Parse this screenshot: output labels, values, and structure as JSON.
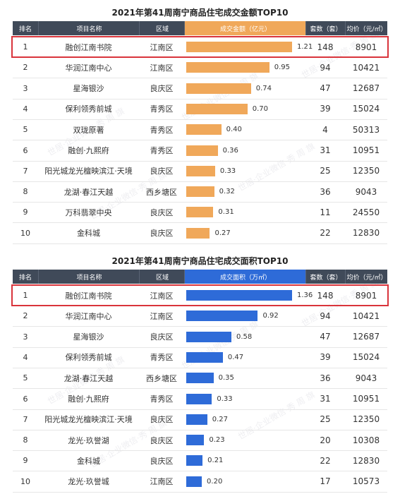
{
  "headers": {
    "rank": "排名",
    "name": "项目名称",
    "district": "区域",
    "count": "套数（套）",
    "avg": "均价（元/㎡）"
  },
  "watermark": "世居·企业微信·秀 周 旗",
  "chart_data": [
    {
      "type": "bar",
      "title": "2021年第41周南宁商品住宅成交金额TOP10",
      "metric_header": "成交金额（亿元）",
      "bar_color": "#f0a85a",
      "xlim": [
        0,
        1.21
      ],
      "highlighted_rank": 1,
      "rows": [
        {
          "rank": "1",
          "name": "融创江南书院",
          "district": "江南区",
          "value": 1.21,
          "value_label": "1.21",
          "count": "148",
          "avg": "8901"
        },
        {
          "rank": "2",
          "name": "华润江南中心",
          "district": "江南区",
          "value": 0.95,
          "value_label": "0.95",
          "count": "94",
          "avg": "10421"
        },
        {
          "rank": "3",
          "name": "星海银沙",
          "district": "良庆区",
          "value": 0.74,
          "value_label": "0.74",
          "count": "47",
          "avg": "12687"
        },
        {
          "rank": "4",
          "name": "保利领秀前城",
          "district": "青秀区",
          "value": 0.7,
          "value_label": "0.70",
          "count": "39",
          "avg": "15024"
        },
        {
          "rank": "5",
          "name": "双珑原著",
          "district": "青秀区",
          "value": 0.4,
          "value_label": "0.40",
          "count": "4",
          "avg": "50313"
        },
        {
          "rank": "6",
          "name": "融创·九熙府",
          "district": "青秀区",
          "value": 0.36,
          "value_label": "0.36",
          "count": "31",
          "avg": "10951"
        },
        {
          "rank": "7",
          "name": "阳光城龙光檀映滨江·天境",
          "district": "良庆区",
          "value": 0.33,
          "value_label": "0.33",
          "count": "25",
          "avg": "12350"
        },
        {
          "rank": "8",
          "name": "龙湖·春江天越",
          "district": "西乡塘区",
          "value": 0.32,
          "value_label": "0.32",
          "count": "36",
          "avg": "9043"
        },
        {
          "rank": "9",
          "name": "万科翡翠中央",
          "district": "良庆区",
          "value": 0.31,
          "value_label": "0.31",
          "count": "11",
          "avg": "24550"
        },
        {
          "rank": "10",
          "name": "金科城",
          "district": "良庆区",
          "value": 0.27,
          "value_label": "0.27",
          "count": "22",
          "avg": "12830"
        }
      ]
    },
    {
      "type": "bar",
      "title": "2021年第41周南宁商品住宅成交面积TOP10",
      "metric_header": "成交面积（万㎡）",
      "bar_color": "#2e6bd8",
      "xlim": [
        0,
        1.36
      ],
      "highlighted_rank": 1,
      "rows": [
        {
          "rank": "1",
          "name": "融创江南书院",
          "district": "江南区",
          "value": 1.36,
          "value_label": "1.36",
          "count": "148",
          "avg": "8901"
        },
        {
          "rank": "2",
          "name": "华润江南中心",
          "district": "江南区",
          "value": 0.92,
          "value_label": "0.92",
          "count": "94",
          "avg": "10421"
        },
        {
          "rank": "3",
          "name": "星海银沙",
          "district": "良庆区",
          "value": 0.58,
          "value_label": "0.58",
          "count": "47",
          "avg": "12687"
        },
        {
          "rank": "4",
          "name": "保利领秀前城",
          "district": "青秀区",
          "value": 0.47,
          "value_label": "0.47",
          "count": "39",
          "avg": "15024"
        },
        {
          "rank": "5",
          "name": "龙湖·春江天越",
          "district": "西乡塘区",
          "value": 0.35,
          "value_label": "0.35",
          "count": "36",
          "avg": "9043"
        },
        {
          "rank": "6",
          "name": "融创·九熙府",
          "district": "青秀区",
          "value": 0.33,
          "value_label": "0.33",
          "count": "31",
          "avg": "10951"
        },
        {
          "rank": "7",
          "name": "阳光城龙光檀映滨江·天境",
          "district": "良庆区",
          "value": 0.27,
          "value_label": "0.27",
          "count": "25",
          "avg": "12350"
        },
        {
          "rank": "8",
          "name": "龙光·玖誉湖",
          "district": "良庆区",
          "value": 0.23,
          "value_label": "0.23",
          "count": "20",
          "avg": "10308"
        },
        {
          "rank": "9",
          "name": "金科城",
          "district": "良庆区",
          "value": 0.21,
          "value_label": "0.21",
          "count": "22",
          "avg": "12830"
        },
        {
          "rank": "10",
          "name": "龙光·玖誉城",
          "district": "江南区",
          "value": 0.2,
          "value_label": "0.20",
          "count": "17",
          "avg": "10573"
        }
      ]
    }
  ]
}
